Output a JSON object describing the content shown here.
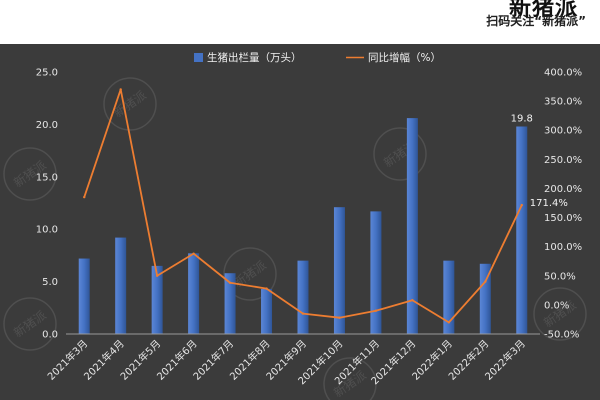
{
  "header": {
    "title_fragment": "新猪派",
    "scan_text": "扫码关注“新猪派”"
  },
  "watermark_text": "新猪派",
  "chart_data": {
    "type": "bar",
    "categories": [
      "2021年3月",
      "2021年4月",
      "2021年5月",
      "2021年6月",
      "2021年7月",
      "2021年8月",
      "2021年9月",
      "2021年10月",
      "2021年11月",
      "2021年12月",
      "2022年1月",
      "2022年2月",
      "2022年3月"
    ],
    "series": [
      {
        "name": "生猪出栏量（万头）",
        "type": "bar",
        "axis": "left",
        "color": "#4472c4",
        "values": [
          7.2,
          9.2,
          6.5,
          7.7,
          5.8,
          4.3,
          7.0,
          12.1,
          11.7,
          20.6,
          7.0,
          6.7,
          19.8
        ]
      },
      {
        "name": "同比增幅（%）",
        "type": "line",
        "axis": "right",
        "color": "#ed7d31",
        "values": [
          185,
          370,
          50,
          88,
          38,
          28,
          -15,
          -22,
          -10,
          8,
          -30,
          40,
          171.4
        ]
      }
    ],
    "y_left": {
      "min": 0,
      "max": 25,
      "step": 5,
      "tick_labels": [
        "0.0",
        "5.0",
        "10.0",
        "15.0",
        "20.0",
        "25.0"
      ]
    },
    "y_right": {
      "min": -50,
      "max": 400,
      "step": 50,
      "tick_labels": [
        "-50.0%",
        "0.0%",
        "50.0%",
        "100.0%",
        "150.0%",
        "200.0%",
        "250.0%",
        "300.0%",
        "350.0%",
        "400.0%"
      ]
    },
    "data_labels": [
      {
        "series": 0,
        "index": 12,
        "text": "19.8"
      },
      {
        "series": 1,
        "index": 12,
        "text": "171.4%"
      }
    ],
    "legend_position": "top-center",
    "grid": false,
    "background": "#3b3b3b"
  }
}
